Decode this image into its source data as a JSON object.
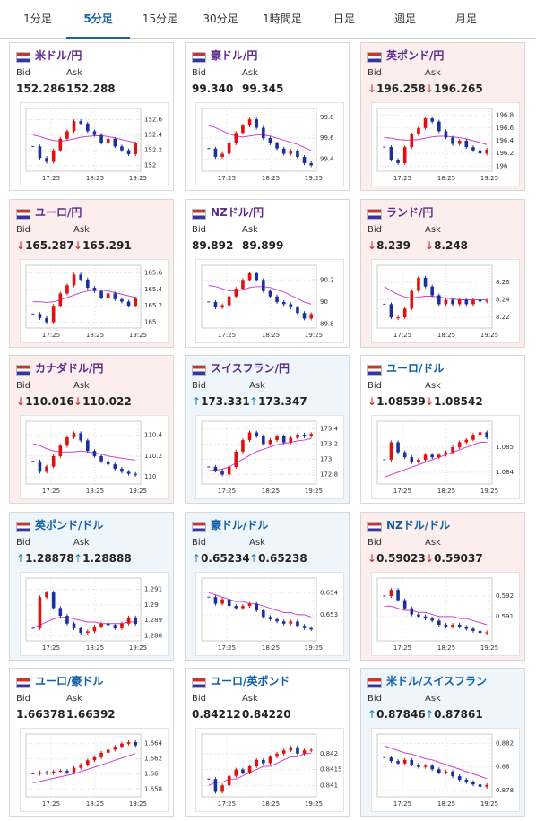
{
  "tabs": [
    "1分足",
    "5分足",
    "15分足",
    "30分足",
    "1時間足",
    "日足",
    "週足",
    "月足"
  ],
  "active_tab": 1,
  "bid_label": "Bid",
  "ask_label": "Ask",
  "time_labels": [
    "17:25",
    "18:25",
    "19:25"
  ],
  "cards": [
    {
      "name": "米ドル/円",
      "name_color": "#5b2a8c",
      "bg": "#ffffff",
      "bid": "152.286",
      "ask": "152.288",
      "chart": {
        "ylim": [
          151.95,
          152.7
        ],
        "yticks": [
          152.6,
          152.4,
          152.2,
          152
        ],
        "closes": [
          152.25,
          152.1,
          152.05,
          152.2,
          152.35,
          152.45,
          152.58,
          152.55,
          152.45,
          152.4,
          152.3,
          152.35,
          152.25,
          152.2,
          152.15,
          152.29
        ],
        "ma": [
          152.4,
          152.38,
          152.35,
          152.33,
          152.32,
          152.33,
          152.35,
          152.37,
          152.38,
          152.39,
          152.39,
          152.38,
          152.36,
          152.34,
          152.32,
          152.3
        ]
      }
    },
    {
      "name": "豪ドル/円",
      "name_color": "#5b2a8c",
      "bg": "#ffffff",
      "bid": "99.340",
      "ask": "99.345",
      "chart": {
        "ylim": [
          99.3,
          99.85
        ],
        "yticks": [
          99.8,
          99.6,
          99.4
        ],
        "closes": [
          99.5,
          99.42,
          99.45,
          99.55,
          99.65,
          99.72,
          99.78,
          99.7,
          99.6,
          99.55,
          99.5,
          99.45,
          99.48,
          99.42,
          99.36,
          99.34
        ],
        "ma": [
          99.72,
          99.7,
          99.67,
          99.64,
          99.62,
          99.61,
          99.62,
          99.63,
          99.63,
          99.62,
          99.6,
          99.58,
          99.56,
          99.54,
          99.51,
          99.48
        ]
      }
    },
    {
      "name": "英ポンド/円",
      "name_color": "#5b2a8c",
      "bg": "#fbeeed",
      "arrow": "↓",
      "arrow_color": "#d02020",
      "bid": "196.258",
      "ask": "196.265",
      "chart": {
        "ylim": [
          195.95,
          196.85
        ],
        "yticks": [
          196.8,
          196.6,
          196.4,
          196.2,
          196
        ],
        "closes": [
          196.3,
          196.1,
          196.05,
          196.3,
          196.5,
          196.6,
          196.75,
          196.7,
          196.55,
          196.45,
          196.35,
          196.4,
          196.3,
          196.25,
          196.2,
          196.26
        ],
        "ma": [
          196.45,
          196.44,
          196.42,
          196.41,
          196.41,
          196.42,
          196.44,
          196.46,
          196.47,
          196.47,
          196.46,
          196.45,
          196.43,
          196.4,
          196.37,
          196.34
        ]
      }
    },
    {
      "name": "ユーロ/円",
      "name_color": "#5b2a8c",
      "bg": "#fbeeed",
      "arrow": "↓",
      "arrow_color": "#d02020",
      "bid": "165.287",
      "ask": "165.291",
      "chart": {
        "ylim": [
          164.95,
          165.65
        ],
        "yticks": [
          165.6,
          165.4,
          165.2,
          165
        ],
        "closes": [
          165.1,
          165.05,
          165.0,
          165.2,
          165.35,
          165.45,
          165.58,
          165.52,
          165.42,
          165.38,
          165.3,
          165.35,
          165.28,
          165.25,
          165.2,
          165.29
        ],
        "ma": [
          165.25,
          165.25,
          165.24,
          165.25,
          165.27,
          165.3,
          165.33,
          165.36,
          165.38,
          165.39,
          165.39,
          165.38,
          165.36,
          165.34,
          165.32,
          165.3
        ]
      }
    },
    {
      "name": "NZドル/円",
      "name_color": "#5b2a8c",
      "bg": "#ffffff",
      "bid": "89.892",
      "ask": "89.899",
      "chart": {
        "ylim": [
          89.78,
          90.3
        ],
        "yticks": [
          90.2,
          90,
          89.8
        ],
        "closes": [
          90.0,
          89.95,
          89.97,
          90.05,
          90.12,
          90.2,
          90.26,
          90.2,
          90.1,
          90.05,
          90.0,
          89.98,
          89.95,
          89.9,
          89.85,
          89.89
        ],
        "ma": [
          90.15,
          90.14,
          90.12,
          90.1,
          90.1,
          90.11,
          90.13,
          90.14,
          90.14,
          90.13,
          90.11,
          90.09,
          90.06,
          90.03,
          90.0,
          89.98
        ]
      }
    },
    {
      "name": "ランド/円",
      "name_color": "#5b2a8c",
      "bg": "#fbeeed",
      "arrow": "↓",
      "arrow_color": "#d02020",
      "bid": "8.239",
      "ask": "8.248",
      "chart": {
        "ylim": [
          8.21,
          8.275
        ],
        "yticks": [
          8.26,
          8.24,
          8.22
        ],
        "closes": [
          8.235,
          8.22,
          8.22,
          8.23,
          8.25,
          8.265,
          8.255,
          8.245,
          8.235,
          8.24,
          8.235,
          8.24,
          8.235,
          8.24,
          8.238,
          8.239
        ],
        "ma": [
          8.255,
          8.25,
          8.246,
          8.243,
          8.242,
          8.243,
          8.244,
          8.244,
          8.243,
          8.242,
          8.241,
          8.24,
          8.24,
          8.24,
          8.24,
          8.24
        ]
      }
    },
    {
      "name": "カナダドル/円",
      "name_color": "#5b2a8c",
      "bg": "#fbeeed",
      "arrow": "↓",
      "arrow_color": "#d02020",
      "bid": "110.016",
      "ask": "110.022",
      "chart": {
        "ylim": [
          109.95,
          110.5
        ],
        "yticks": [
          110.4,
          110.2,
          110
        ],
        "closes": [
          110.15,
          110.05,
          110.1,
          110.2,
          110.3,
          110.38,
          110.42,
          110.35,
          110.25,
          110.2,
          110.15,
          110.12,
          110.08,
          110.05,
          110.03,
          110.02
        ],
        "ma": [
          110.32,
          110.3,
          110.27,
          110.25,
          110.24,
          110.24,
          110.24,
          110.25,
          110.24,
          110.23,
          110.22,
          110.2,
          110.19,
          110.18,
          110.17,
          110.16
        ]
      }
    },
    {
      "name": "スイスフラン/円",
      "name_color": "#5b2a8c",
      "bg": "#eef5fb",
      "arrow": "↑",
      "arrow_color": "#1a7fb0",
      "bid": "173.331",
      "ask": "173.347",
      "chart": {
        "ylim": [
          172.7,
          173.45
        ],
        "yticks": [
          173.4,
          173.2,
          173,
          172.8
        ],
        "closes": [
          172.9,
          172.85,
          172.8,
          172.9,
          173.1,
          173.25,
          173.35,
          173.3,
          173.2,
          173.25,
          173.3,
          173.22,
          173.28,
          173.32,
          173.3,
          173.33
        ],
        "ma": [
          172.85,
          172.86,
          172.87,
          172.9,
          172.95,
          173.0,
          173.05,
          173.1,
          173.13,
          173.16,
          173.19,
          173.21,
          173.22,
          173.24,
          173.25,
          173.27
        ]
      }
    },
    {
      "name": "ユーロ/ドル",
      "name_color": "#1060a8",
      "bg": "#ffffff",
      "arrow": "↓",
      "arrow_color": "#d02020",
      "bid": "1.08539",
      "ask": "1.08542",
      "chart": {
        "ylim": [
          1.0836,
          1.0859
        ],
        "yticks": [
          1.085,
          1.084
        ],
        "closes": [
          1.0845,
          1.0852,
          1.0848,
          1.0846,
          1.0844,
          1.0845,
          1.0847,
          1.0846,
          1.0847,
          1.0848,
          1.085,
          1.0852,
          1.0853,
          1.0855,
          1.0856,
          1.08539
        ],
        "ma": [
          1.0838,
          1.0839,
          1.084,
          1.0841,
          1.0842,
          1.0843,
          1.0844,
          1.0845,
          1.0846,
          1.0847,
          1.0848,
          1.0849,
          1.085,
          1.0851,
          1.0852,
          1.0852
        ]
      }
    },
    {
      "name": "英ポンド/ドル",
      "name_color": "#1060a8",
      "bg": "#eef5fb",
      "arrow": "↑",
      "arrow_color": "#1a7fb0",
      "bid": "1.28878",
      "ask": "1.28888",
      "chart": {
        "ylim": [
          1.2878,
          1.2915
        ],
        "yticks": [
          1.291,
          1.29,
          1.289,
          1.288
        ],
        "closes": [
          1.2885,
          1.2905,
          1.2908,
          1.2898,
          1.2893,
          1.2888,
          1.2885,
          1.2882,
          1.2883,
          1.2886,
          1.2888,
          1.2887,
          1.2885,
          1.2888,
          1.2892,
          1.28878
        ],
        "ma": [
          1.2885,
          1.2887,
          1.2889,
          1.2891,
          1.2892,
          1.2892,
          1.2891,
          1.289,
          1.2889,
          1.2889,
          1.2888,
          1.2888,
          1.2888,
          1.2888,
          1.2889,
          1.2889
        ]
      }
    },
    {
      "name": "豪ドル/ドル",
      "name_color": "#1060a8",
      "bg": "#eef5fb",
      "arrow": "↑",
      "arrow_color": "#1a7fb0",
      "bid": "0.65234",
      "ask": "0.65238",
      "chart": {
        "ylim": [
          0.6519,
          0.6545
        ],
        "yticks": [
          0.654,
          0.653
        ],
        "closes": [
          0.6538,
          0.6535,
          0.6537,
          0.6534,
          0.6533,
          0.6534,
          0.6535,
          0.6532,
          0.6529,
          0.6528,
          0.6527,
          0.6526,
          0.6527,
          0.6525,
          0.6524,
          0.65234
        ],
        "ma": [
          0.654,
          0.6539,
          0.6538,
          0.6537,
          0.6536,
          0.6536,
          0.6535,
          0.6535,
          0.6534,
          0.6533,
          0.6532,
          0.6531,
          0.6531,
          0.653,
          0.653,
          0.6529
        ]
      }
    },
    {
      "name": "NZドル/ドル",
      "name_color": "#1060a8",
      "bg": "#fbeeed",
      "arrow": "↓",
      "arrow_color": "#d02020",
      "bid": "0.59023",
      "ask": "0.59037",
      "chart": {
        "ylim": [
          0.5899,
          0.5927
        ],
        "yticks": [
          0.592,
          0.591
        ],
        "closes": [
          0.592,
          0.5923,
          0.5918,
          0.5914,
          0.5911,
          0.591,
          0.5909,
          0.5908,
          0.5906,
          0.5905,
          0.5906,
          0.5905,
          0.5904,
          0.5903,
          0.5902,
          0.59023
        ],
        "ma": [
          0.5915,
          0.5915,
          0.5914,
          0.5913,
          0.5913,
          0.5912,
          0.5912,
          0.5911,
          0.591,
          0.591,
          0.591,
          0.5909,
          0.5909,
          0.5908,
          0.5907,
          0.5906
        ]
      }
    },
    {
      "name": "ユーロ/豪ドル",
      "name_color": "#1060a8",
      "bg": "#ffffff",
      "bid": "1.66378",
      "ask": "1.66392",
      "chart": {
        "ylim": [
          1.6572,
          1.6648
        ],
        "yticks": [
          1.664,
          1.662,
          1.66,
          1.658
        ],
        "closes": [
          1.66,
          1.6602,
          1.6601,
          1.6603,
          1.6604,
          1.6602,
          1.6608,
          1.6612,
          1.6618,
          1.6622,
          1.6628,
          1.6632,
          1.6636,
          1.664,
          1.6642,
          1.66378
        ],
        "ma": [
          1.6588,
          1.659,
          1.6592,
          1.6594,
          1.6596,
          1.6598,
          1.66,
          1.6603,
          1.6606,
          1.6609,
          1.6612,
          1.6615,
          1.6618,
          1.6621,
          1.6624,
          1.6627
        ]
      }
    },
    {
      "name": "ユーロ/英ポンド",
      "name_color": "#1060a8",
      "bg": "#ffffff",
      "bid": "0.84212",
      "ask": "0.84220",
      "chart": {
        "ylim": [
          0.8407,
          0.8425
        ],
        "yticks": [
          0.842,
          0.8415,
          0.841
        ],
        "closes": [
          0.8412,
          0.8408,
          0.841,
          0.8413,
          0.8415,
          0.8414,
          0.8416,
          0.8418,
          0.8417,
          0.8419,
          0.842,
          0.8421,
          0.8422,
          0.842,
          0.8421,
          0.84212
        ],
        "ma": [
          0.841,
          0.8411,
          0.8411,
          0.8412,
          0.8412,
          0.8413,
          0.8414,
          0.8415,
          0.8416,
          0.8416,
          0.8417,
          0.8418,
          0.8419,
          0.8419,
          0.842,
          0.842
        ]
      }
    },
    {
      "name": "米ドル/スイスフラン",
      "name_color": "#1060a8",
      "bg": "#eef5fb",
      "arrow": "↑",
      "arrow_color": "#1a7fb0",
      "bid": "0.87846",
      "ask": "0.87861",
      "chart": {
        "ylim": [
          0.8776,
          0.8825
        ],
        "yticks": [
          0.882,
          0.88,
          0.878
        ],
        "closes": [
          0.8808,
          0.8805,
          0.8803,
          0.8806,
          0.8802,
          0.88,
          0.8801,
          0.8798,
          0.8795,
          0.8796,
          0.8792,
          0.8789,
          0.8787,
          0.8785,
          0.8783,
          0.87846
        ],
        "ma": [
          0.8818,
          0.8816,
          0.8814,
          0.8812,
          0.8811,
          0.8809,
          0.8807,
          0.8806,
          0.8804,
          0.8802,
          0.88,
          0.8798,
          0.8796,
          0.8794,
          0.8792,
          0.879
        ]
      }
    }
  ]
}
